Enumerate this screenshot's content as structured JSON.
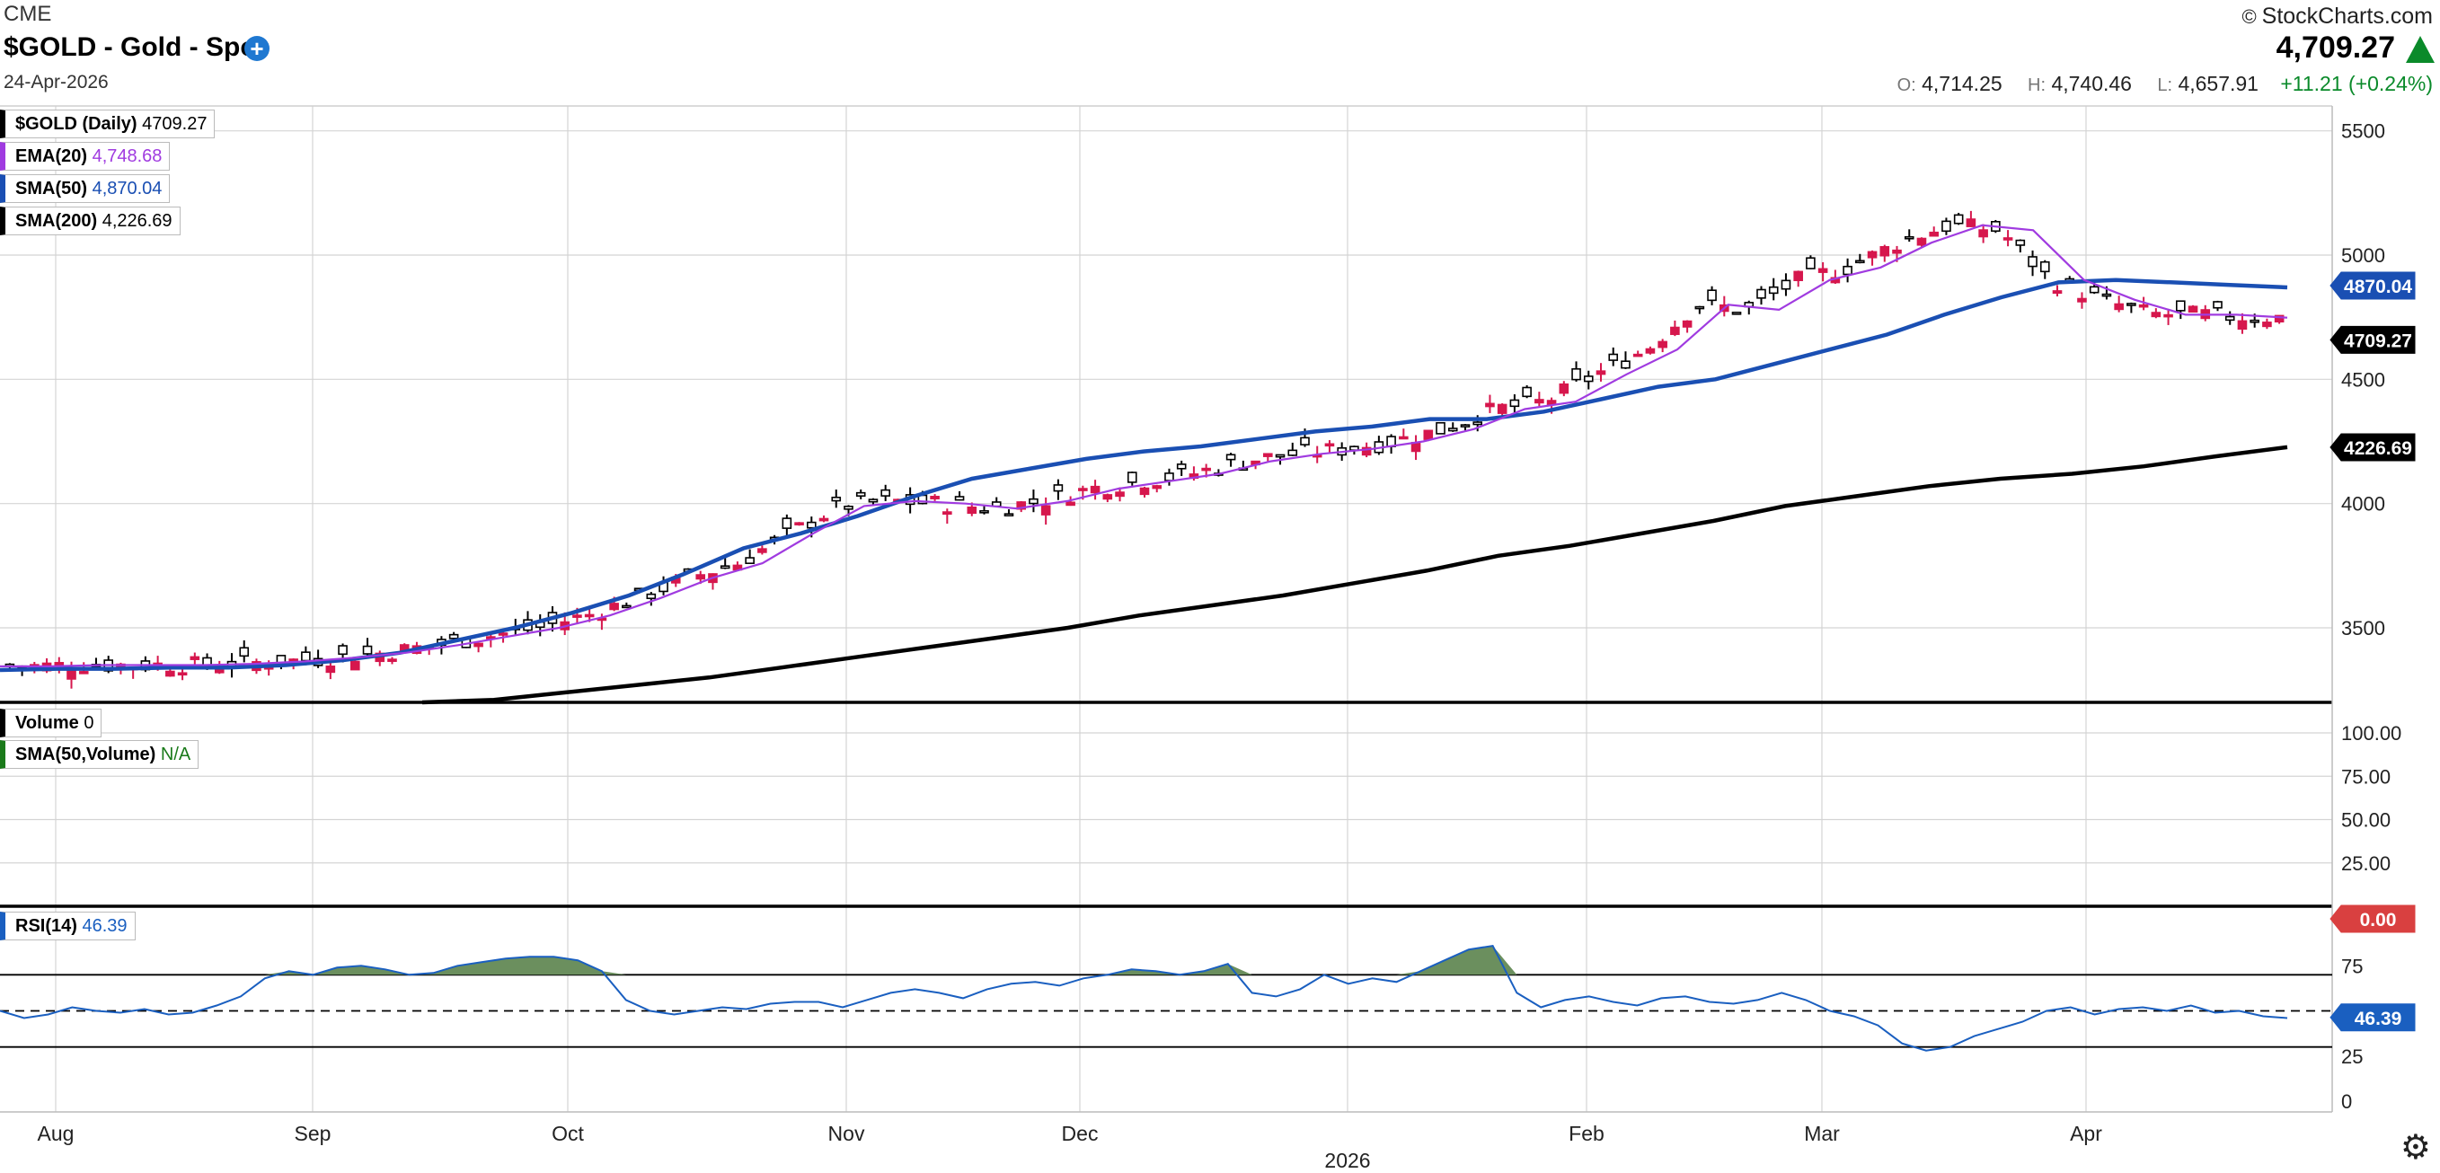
{
  "header": {
    "exchange": "CME",
    "title": "$GOLD - Gold - Spot",
    "date": "24-Apr-2026",
    "brand": "StockCharts.com",
    "copyright": "©",
    "last": "4,709.27",
    "ohlc": {
      "o_label": "O:",
      "o": "4,714.25",
      "h_label": "H:",
      "h": "4,740.46",
      "l_label": "L:",
      "l": "4,657.91",
      "change": "+11.21 (+0.24%)"
    }
  },
  "legend": {
    "price": {
      "label": "$GOLD (Daily)",
      "value": "4709.27"
    },
    "ema20": {
      "label": "EMA(20)",
      "value": "4,748.68"
    },
    "sma50": {
      "label": "SMA(50)",
      "value": "4,870.04"
    },
    "sma200": {
      "label": "SMA(200)",
      "value": "4,226.69"
    },
    "volume": {
      "label": "Volume",
      "value": "0"
    },
    "vol_sma": {
      "label": "SMA(50,Volume)",
      "value": "N/A"
    },
    "rsi": {
      "label": "RSI(14)",
      "value": "46.39"
    }
  },
  "tags": {
    "sma50": "4870.04",
    "last": "4709.27",
    "sma200": "4226.69",
    "volume": "0.00",
    "rsi": "46.39"
  },
  "colors": {
    "up": "#000000",
    "down": "#d6174d",
    "ema": "#a03be0",
    "sma50": "#1a4fb3",
    "sma200": "#000000",
    "rsi": "#1a5fc0",
    "rsi_fill": "#6b8f5e",
    "vol_tag": "#d94040",
    "grid": "#d4d4d4"
  },
  "chart_data": [
    {
      "type": "candlestick",
      "title": "$GOLD - Gold - Spot",
      "ylim": [
        3200,
        5600
      ],
      "yticks": [
        "3500",
        "4000",
        "4500",
        "5000",
        "5500"
      ],
      "x_labels": [
        "Aug",
        "Sep",
        "Oct",
        "Nov",
        "Dec",
        "2026",
        "Feb",
        "Mar",
        "Apr"
      ],
      "series": [
        {
          "name": "EMA(20)",
          "values": [
            3345,
            3345,
            3350,
            3350,
            3350,
            3355,
            3365,
            3380,
            3400,
            3430,
            3465,
            3500,
            3550,
            3620,
            3700,
            3760,
            3880,
            3990,
            4010,
            4000,
            3980,
            4010,
            4060,
            4090,
            4120,
            4170,
            4200,
            4220,
            4250,
            4300,
            4380,
            4410,
            4520,
            4620,
            4800,
            4780,
            4900,
            4950,
            5050,
            5120,
            5100,
            4900,
            4820,
            4760,
            4760,
            4748
          ]
        },
        {
          "name": "SMA(50)",
          "values": [
            3330,
            3335,
            3335,
            3340,
            3340,
            3350,
            3370,
            3400,
            3450,
            3500,
            3560,
            3630,
            3720,
            3820,
            3880,
            3950,
            4030,
            4100,
            4140,
            4180,
            4210,
            4230,
            4260,
            4290,
            4310,
            4340,
            4340,
            4370,
            4420,
            4470,
            4500,
            4560,
            4620,
            4680,
            4760,
            4830,
            4890,
            4900,
            4890,
            4880,
            4870
          ]
        },
        {
          "name": "SMA(200)",
          "values": [
            3200,
            3210,
            3240,
            3270,
            3300,
            3340,
            3380,
            3420,
            3460,
            3500,
            3550,
            3590,
            3630,
            3680,
            3730,
            3790,
            3830,
            3880,
            3930,
            3990,
            4030,
            4070,
            4100,
            4120,
            4150,
            4190,
            4227
          ]
        }
      ]
    },
    {
      "type": "line",
      "name": "Volume",
      "ylim": [
        0,
        100
      ],
      "yticks": [
        "100.00",
        "75.00",
        "50.00",
        "25.00"
      ],
      "values": [
        0
      ]
    },
    {
      "type": "line",
      "name": "RSI(14)",
      "ylim": [
        0,
        100
      ],
      "yticks": [
        "100",
        "75",
        "50",
        "25",
        "0"
      ],
      "levels": [
        70,
        50,
        30
      ],
      "values": [
        50,
        46,
        48,
        52,
        50,
        49,
        51,
        48,
        49,
        53,
        58,
        68,
        72,
        70,
        74,
        75,
        73,
        70,
        71,
        75,
        77,
        79,
        80,
        80,
        78,
        72,
        56,
        50,
        48,
        50,
        52,
        51,
        54,
        55,
        55,
        52,
        56,
        60,
        62,
        60,
        57,
        62,
        65,
        66,
        64,
        68,
        70,
        73,
        72,
        70,
        72,
        76,
        60,
        58,
        62,
        70,
        65,
        68,
        66,
        72,
        78,
        84,
        86,
        60,
        52,
        56,
        58,
        55,
        53,
        57,
        58,
        55,
        54,
        56,
        60,
        56,
        50,
        47,
        42,
        32,
        28,
        30,
        36,
        40,
        44,
        50,
        52,
        48,
        51,
        52,
        50,
        53,
        49,
        50,
        47,
        46
      ]
    }
  ]
}
